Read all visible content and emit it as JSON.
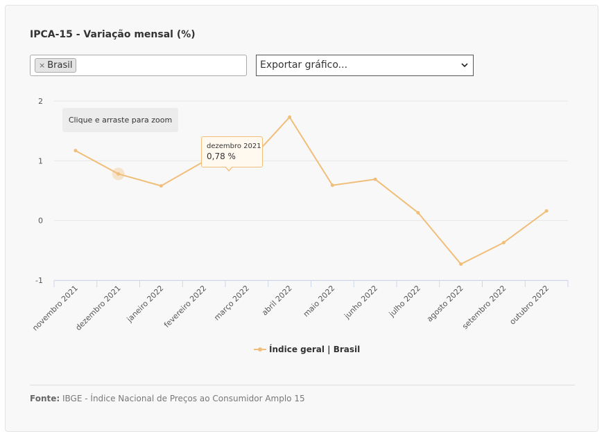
{
  "title": "IPCA-15 - Variação mensal (%)",
  "filter": {
    "tag_remove": "×",
    "tag_label": "Brasil"
  },
  "export_select": {
    "selected": "Exportar gráfico...",
    "chevron": "⌄"
  },
  "zoom_hint": "Clique e arraste para zoom",
  "tooltip": {
    "date": "dezembro 2021",
    "value": "0,78 %"
  },
  "legend": {
    "label": "Índice geral | Brasil"
  },
  "source": {
    "label": "Fonte:",
    "text": "IBGE - Índice Nacional de Preços ao Consumidor Amplo 15"
  },
  "colors": {
    "series": "#f1be7a",
    "grid": "#e6e6e6",
    "axis": "#ccd6eb"
  },
  "chart_data": {
    "type": "line",
    "categories": [
      "novembro 2021",
      "dezembro 2021",
      "janeiro 2022",
      "fevereiro 2022",
      "março 2022",
      "abril 2022",
      "maio 2022",
      "junho 2022",
      "julho 2022",
      "agosto 2022",
      "setembro 2022",
      "outubro 2022"
    ],
    "series": [
      {
        "name": "Índice geral | Brasil",
        "values": [
          1.17,
          0.78,
          0.58,
          0.99,
          0.95,
          1.73,
          0.59,
          0.69,
          0.13,
          -0.73,
          -0.37,
          0.16
        ]
      }
    ],
    "yticks": [
      2,
      1,
      0,
      -1
    ],
    "ylim": [
      -1,
      2
    ],
    "grid": true,
    "legend_position": "bottom-center",
    "highlighted": "dezembro 2021"
  }
}
